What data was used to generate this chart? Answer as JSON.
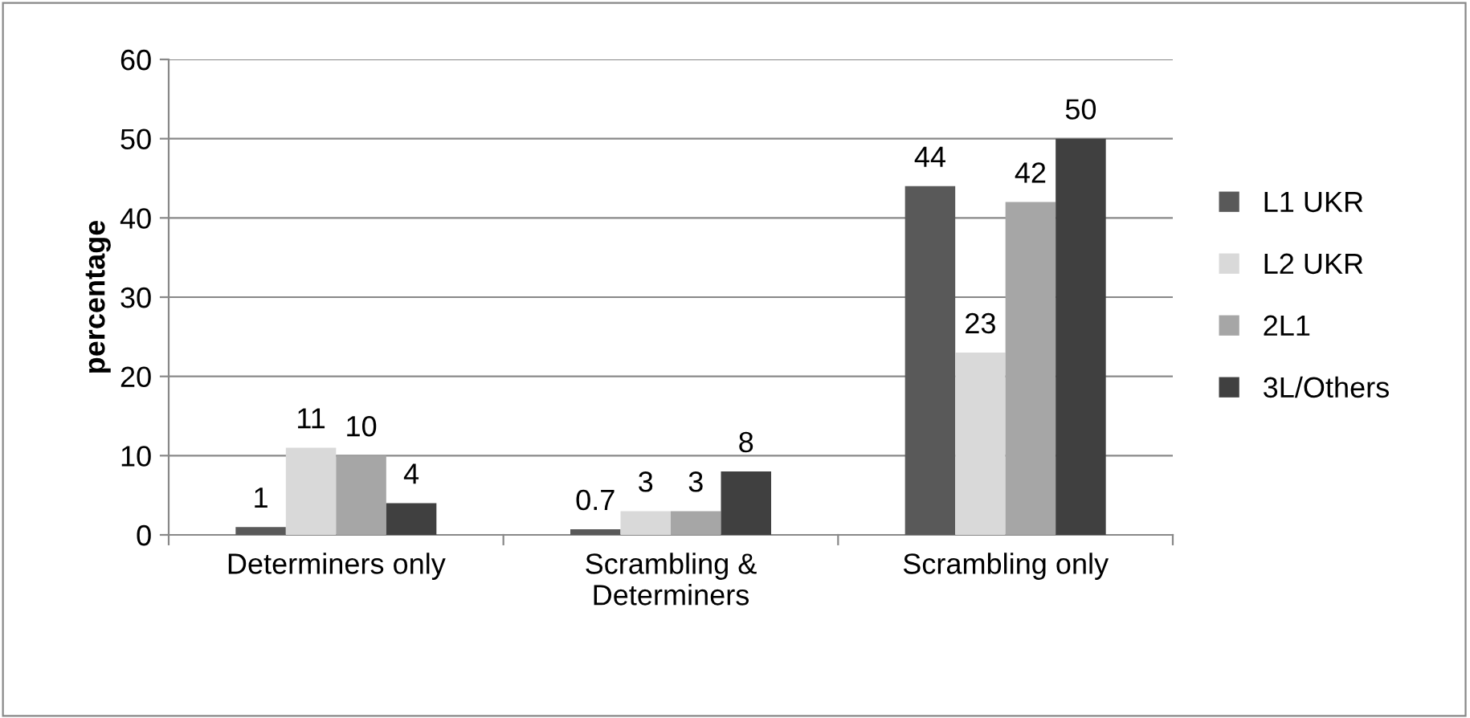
{
  "chart_data": {
    "type": "bar",
    "ylabel": "percentage",
    "categories": [
      "Determiners only",
      "Scrambling &\nDeterminers",
      "Scrambling only"
    ],
    "series": [
      {
        "name": "L1 UKR",
        "color": "#595959",
        "values": [
          1,
          0.7,
          44
        ]
      },
      {
        "name": "L2 UKR",
        "color": "#d9d9d9",
        "values": [
          11,
          3,
          23
        ]
      },
      {
        "name": "2L1",
        "color": "#a6a6a6",
        "values": [
          10,
          3,
          42
        ]
      },
      {
        "name": "3L/Others",
        "color": "#404040",
        "values": [
          4,
          8,
          50
        ]
      }
    ],
    "ylim": [
      0,
      60
    ],
    "yticks": [
      0,
      10,
      20,
      30,
      40,
      50,
      60
    ],
    "grid": "y",
    "legend": "right",
    "data_labels": true
  }
}
